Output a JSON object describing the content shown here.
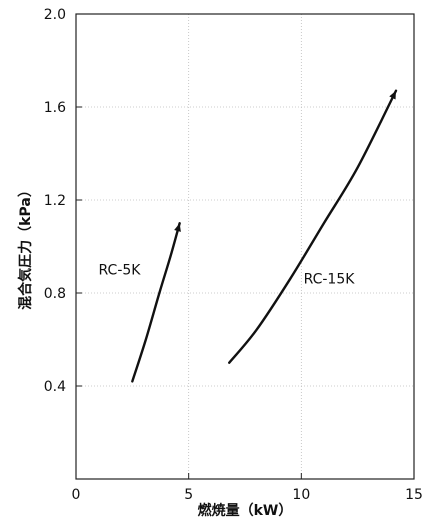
{
  "chart_data": {
    "type": "line",
    "title": "",
    "xlabel": "燃焼量（kW）",
    "ylabel": "混合気圧力（kPa）",
    "xlim": [
      0,
      15
    ],
    "ylim": [
      0,
      2.0
    ],
    "x_ticks": [
      0,
      5,
      10,
      15
    ],
    "x_tick_labels": [
      "0",
      "5",
      "10",
      "15"
    ],
    "y_ticks": [
      0.4,
      0.8,
      1.2,
      1.6,
      2.0
    ],
    "y_tick_labels": [
      "0.4",
      "0.8",
      "1.2",
      "1.6",
      "2.0"
    ],
    "grid": true,
    "series": [
      {
        "name": "RC-5K",
        "arrow_end": true,
        "points": [
          [
            2.5,
            0.42
          ],
          [
            3.1,
            0.6
          ],
          [
            3.7,
            0.8
          ],
          [
            4.2,
            0.96
          ],
          [
            4.6,
            1.1
          ]
        ]
      },
      {
        "name": "RC-15K",
        "arrow_end": true,
        "points": [
          [
            6.8,
            0.5
          ],
          [
            8.0,
            0.64
          ],
          [
            9.5,
            0.86
          ],
          [
            11.0,
            1.1
          ],
          [
            12.5,
            1.34
          ],
          [
            14.2,
            1.67
          ]
        ]
      }
    ],
    "colors": {
      "line": "#111111",
      "grid": "#bdbdbd",
      "axis": "#222222"
    }
  }
}
